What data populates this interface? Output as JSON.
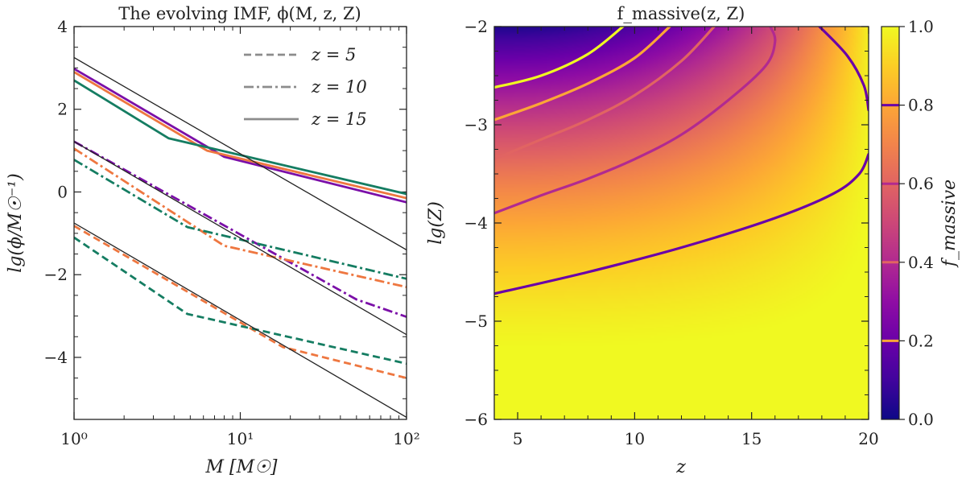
{
  "chart_data": [
    {
      "type": "line",
      "title": "The evolving IMF, ϕ(M, z, Z)",
      "xlabel": "M [M☉]",
      "ylabel": "lg(ϕ/M☉⁻¹)",
      "xscale": "log",
      "xlim": [
        1,
        100
      ],
      "ylim": [
        -5.5,
        4
      ],
      "xticks": [
        {
          "v": 1,
          "label": "10⁰"
        },
        {
          "v": 10,
          "label": "10¹"
        },
        {
          "v": 100,
          "label": "10²"
        }
      ],
      "yticks": [
        {
          "v": -4,
          "label": "−4"
        },
        {
          "v": -2,
          "label": "−2"
        },
        {
          "v": 0,
          "label": "0"
        },
        {
          "v": 2,
          "label": "2"
        },
        {
          "v": 4,
          "label": "4"
        }
      ],
      "legend_position": "top-right",
      "legend": [
        {
          "label": "z = 5",
          "style": "dashed"
        },
        {
          "label": "z = 10",
          "style": "dashdot"
        },
        {
          "label": "z = 15",
          "style": "solid"
        }
      ],
      "colors": {
        "purple": "#7b0fa8",
        "orange": "#ee7740",
        "green": "#157d62",
        "reference": "#222222",
        "legend_gray": "#8c8c8c"
      },
      "series": [
        {
          "group": "z=15",
          "color": "purple",
          "style": "solid",
          "x": [
            1,
            8,
            100
          ],
          "y": [
            2.98,
            0.85,
            -0.25
          ]
        },
        {
          "group": "z=15",
          "color": "orange",
          "style": "solid",
          "x": [
            1,
            6.3,
            100
          ],
          "y": [
            2.9,
            1.0,
            -0.15
          ]
        },
        {
          "group": "z=15",
          "color": "green",
          "style": "solid",
          "x": [
            1,
            3.7,
            100
          ],
          "y": [
            2.7,
            1.3,
            -0.05
          ]
        },
        {
          "group": "z=10",
          "color": "purple",
          "style": "dashdot",
          "x": [
            1,
            50,
            100
          ],
          "y": [
            1.22,
            -2.6,
            -3.02
          ]
        },
        {
          "group": "z=10",
          "color": "orange",
          "style": "dashdot",
          "x": [
            1,
            8,
            100
          ],
          "y": [
            1.05,
            -1.3,
            -2.3
          ]
        },
        {
          "group": "z=10",
          "color": "green",
          "style": "dashdot",
          "x": [
            1,
            4.8,
            100
          ],
          "y": [
            0.78,
            -0.85,
            -2.1
          ]
        },
        {
          "group": "z=5",
          "color": "orange",
          "style": "dashed",
          "x": [
            1,
            18,
            100
          ],
          "y": [
            -0.82,
            -3.75,
            -4.5
          ]
        },
        {
          "group": "z=5",
          "color": "green",
          "style": "dashed",
          "x": [
            1,
            4.8,
            100
          ],
          "y": [
            -1.1,
            -2.95,
            -4.15
          ]
        },
        {
          "group": "reference",
          "color": "reference",
          "style": "thin",
          "x": [
            1,
            100
          ],
          "y": [
            3.25,
            -1.4
          ]
        },
        {
          "group": "reference",
          "color": "reference",
          "style": "thin",
          "x": [
            1,
            100
          ],
          "y": [
            1.22,
            -3.45
          ]
        },
        {
          "group": "reference",
          "color": "reference",
          "style": "thin",
          "x": [
            1,
            100
          ],
          "y": [
            -0.75,
            -5.45
          ]
        }
      ]
    },
    {
      "type": "heatmap",
      "title": "f_massive(z, Z)",
      "xlabel": "z",
      "ylabel": "lg(Z)",
      "xlim": [
        4,
        20
      ],
      "ylim": [
        -6,
        -2
      ],
      "xticks": [
        {
          "v": 5,
          "label": "5"
        },
        {
          "v": 10,
          "label": "10"
        },
        {
          "v": 15,
          "label": "15"
        },
        {
          "v": 20,
          "label": "20"
        }
      ],
      "yticks": [
        {
          "v": -6,
          "label": "−6"
        },
        {
          "v": -5,
          "label": "−5"
        },
        {
          "v": -4,
          "label": "−4"
        },
        {
          "v": -3,
          "label": "−3"
        },
        {
          "v": -2,
          "label": "−2"
        }
      ],
      "colormap": "plasma",
      "colorbar": {
        "label": "f_massive",
        "range": [
          0,
          1
        ],
        "ticks": [
          {
            "v": 0,
            "label": "0.0"
          },
          {
            "v": 0.2,
            "label": "0.2"
          },
          {
            "v": 0.4,
            "label": "0.4"
          },
          {
            "v": 0.6,
            "label": "0.6"
          },
          {
            "v": 0.8,
            "label": "0.8"
          },
          {
            "v": 1.0,
            "label": "1.0"
          }
        ],
        "contour_marks": [
          {
            "level": 0.8,
            "color": "#fca636"
          },
          {
            "level": 0.2,
            "color": "#fca636"
          },
          {
            "level": 0.8,
            "color": "#6a00a8"
          },
          {
            "level": 0.6,
            "color": "#b12a90"
          },
          {
            "level": 0.4,
            "color": "#e16462"
          }
        ]
      },
      "contours": [
        {
          "color": "#f0f921",
          "x": [
            4,
            6,
            8,
            9.5
          ],
          "y": [
            -2.62,
            -2.5,
            -2.28,
            -2.0
          ]
        },
        {
          "color": "#fca636",
          "x": [
            4,
            6,
            8,
            10,
            11.5
          ],
          "y": [
            -2.95,
            -2.78,
            -2.58,
            -2.32,
            -2.0
          ]
        },
        {
          "color": "#e16462",
          "x": [
            4,
            6,
            8,
            10,
            12,
            13.4
          ],
          "y": [
            -3.35,
            -3.15,
            -2.95,
            -2.7,
            -2.35,
            -2.0
          ]
        },
        {
          "color": "#b12a90",
          "x": [
            4,
            6,
            8,
            10,
            12,
            14,
            15.6,
            16.0,
            15.8
          ],
          "y": [
            -3.9,
            -3.72,
            -3.55,
            -3.35,
            -3.1,
            -2.75,
            -2.4,
            -2.15,
            -2.0
          ]
        },
        {
          "color": "#6a00a8",
          "x": [
            4,
            8,
            12,
            16,
            18.5,
            19.6,
            20
          ],
          "y": [
            -4.72,
            -4.5,
            -4.25,
            -3.95,
            -3.7,
            -3.5,
            -3.3
          ]
        },
        {
          "color": "#6a00a8",
          "x": [
            17.9,
            19.1,
            19.8,
            20
          ],
          "y": [
            -2.0,
            -2.3,
            -2.6,
            -2.85
          ]
        }
      ]
    }
  ]
}
